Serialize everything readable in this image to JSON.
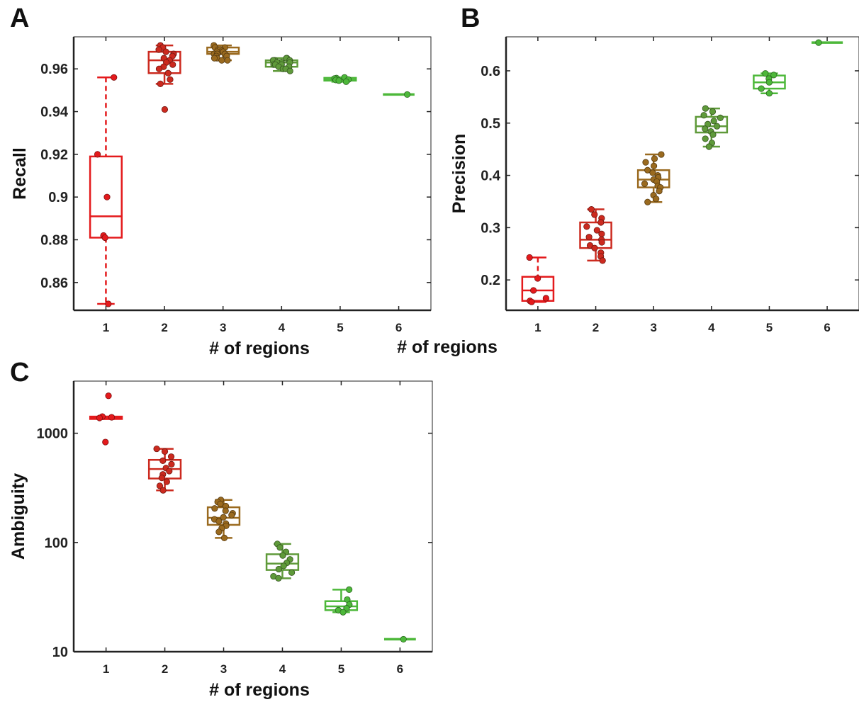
{
  "chart_data": [
    {
      "panel": "A",
      "type": "box",
      "xlabel": "# of regions",
      "ylabel": "Recall",
      "categories": [
        "1",
        "2",
        "3",
        "4",
        "5",
        "6"
      ],
      "ylim": [
        0.847,
        0.975
      ],
      "yticks": [
        {
          "value": 0.86,
          "label": "0.86"
        },
        {
          "value": 0.88,
          "label": "0.88"
        },
        {
          "value": 0.9,
          "label": "0.9"
        },
        {
          "value": 0.92,
          "label": "0.92"
        },
        {
          "value": 0.94,
          "label": "0.94"
        },
        {
          "value": 0.96,
          "label": "0.96"
        }
      ],
      "boxes": [
        {
          "category": "1",
          "color": "#e41a1c",
          "dashed": true,
          "min": 0.85,
          "q1": 0.881,
          "median": 0.891,
          "q3": 0.919,
          "max": 0.956,
          "points": [
            0.956,
            0.92,
            0.9,
            0.882,
            0.881,
            0.85
          ]
        },
        {
          "category": "2",
          "color": "#cc2a1f",
          "dashed": false,
          "min": 0.953,
          "q1": 0.958,
          "median": 0.964,
          "q3": 0.968,
          "max": 0.971,
          "points": [
            0.971,
            0.97,
            0.969,
            0.968,
            0.967,
            0.966,
            0.965,
            0.964,
            0.963,
            0.962,
            0.961,
            0.96,
            0.958,
            0.955,
            0.953,
            0.941
          ]
        },
        {
          "category": "3",
          "color": "#9a6a1f",
          "dashed": false,
          "min": 0.964,
          "q1": 0.967,
          "median": 0.968,
          "q3": 0.97,
          "max": 0.971,
          "points": [
            0.971,
            0.97,
            0.97,
            0.97,
            0.969,
            0.969,
            0.969,
            0.968,
            0.968,
            0.968,
            0.967,
            0.967,
            0.967,
            0.966,
            0.966,
            0.965,
            0.965,
            0.964,
            0.964
          ]
        },
        {
          "category": "4",
          "color": "#5f9a3a",
          "dashed": false,
          "min": 0.959,
          "q1": 0.961,
          "median": 0.963,
          "q3": 0.964,
          "max": 0.965,
          "points": [
            0.965,
            0.965,
            0.964,
            0.964,
            0.964,
            0.963,
            0.963,
            0.963,
            0.962,
            0.962,
            0.962,
            0.961,
            0.961,
            0.96,
            0.96,
            0.959
          ]
        },
        {
          "category": "5",
          "color": "#4db83a",
          "dashed": false,
          "min": 0.954,
          "q1": 0.9545,
          "median": 0.955,
          "q3": 0.9558,
          "max": 0.956,
          "points": [
            0.956,
            0.9557,
            0.9555,
            0.955,
            0.9548,
            0.9545,
            0.954
          ]
        },
        {
          "category": "6",
          "color": "#4db83a",
          "dashed": false,
          "min": 0.948,
          "q1": 0.948,
          "median": 0.948,
          "q3": 0.948,
          "max": 0.948,
          "points": [
            0.948
          ]
        }
      ]
    },
    {
      "panel": "B",
      "type": "box",
      "xlabel": "# of regions",
      "ylabel": "Precision",
      "categories": [
        "1",
        "2",
        "3",
        "4",
        "5",
        "6"
      ],
      "ylim": [
        0.142,
        0.665
      ],
      "yticks": [
        {
          "value": 0.2,
          "label": "0.2"
        },
        {
          "value": 0.3,
          "label": "0.3"
        },
        {
          "value": 0.4,
          "label": "0.4"
        },
        {
          "value": 0.5,
          "label": "0.5"
        },
        {
          "value": 0.6,
          "label": "0.6"
        }
      ],
      "boxes": [
        {
          "category": "1",
          "color": "#e41a1c",
          "dashed": true,
          "min": 0.158,
          "q1": 0.16,
          "median": 0.18,
          "q3": 0.206,
          "max": 0.243,
          "points": [
            0.243,
            0.203,
            0.18,
            0.165,
            0.16,
            0.158
          ]
        },
        {
          "category": "2",
          "color": "#cc2a1f",
          "dashed": false,
          "min": 0.237,
          "q1": 0.261,
          "median": 0.277,
          "q3": 0.31,
          "max": 0.335,
          "points": [
            0.335,
            0.325,
            0.318,
            0.31,
            0.302,
            0.295,
            0.288,
            0.282,
            0.277,
            0.272,
            0.266,
            0.261,
            0.252,
            0.245,
            0.237
          ]
        },
        {
          "category": "3",
          "color": "#9a6a1f",
          "dashed": false,
          "min": 0.349,
          "q1": 0.377,
          "median": 0.392,
          "q3": 0.41,
          "max": 0.44,
          "points": [
            0.44,
            0.432,
            0.425,
            0.418,
            0.41,
            0.405,
            0.4,
            0.396,
            0.392,
            0.388,
            0.384,
            0.38,
            0.377,
            0.37,
            0.362,
            0.355,
            0.349
          ]
        },
        {
          "category": "4",
          "color": "#5f9a3a",
          "dashed": false,
          "min": 0.455,
          "q1": 0.482,
          "median": 0.494,
          "q3": 0.512,
          "max": 0.528,
          "points": [
            0.528,
            0.522,
            0.515,
            0.51,
            0.504,
            0.498,
            0.494,
            0.489,
            0.484,
            0.478,
            0.47,
            0.462,
            0.455
          ]
        },
        {
          "category": "5",
          "color": "#4db83a",
          "dashed": false,
          "min": 0.557,
          "q1": 0.566,
          "median": 0.578,
          "q3": 0.591,
          "max": 0.595,
          "points": [
            0.595,
            0.592,
            0.585,
            0.578,
            0.566,
            0.557
          ]
        },
        {
          "category": "6",
          "color": "#4db83a",
          "dashed": false,
          "min": 0.654,
          "q1": 0.654,
          "median": 0.654,
          "q3": 0.654,
          "max": 0.654,
          "points": [
            0.654
          ]
        }
      ]
    },
    {
      "panel": "C",
      "type": "box",
      "xlabel": "# of regions",
      "ylabel": "Ambiguity",
      "yscale": "log",
      "categories": [
        "1",
        "2",
        "3",
        "4",
        "5",
        "6"
      ],
      "ylim": [
        10,
        3000
      ],
      "yticks": [
        {
          "value": 10,
          "label": "10"
        },
        {
          "value": 100,
          "label": "100"
        },
        {
          "value": 1000,
          "label": "1000"
        }
      ],
      "boxes": [
        {
          "category": "1",
          "color": "#e41a1c",
          "dashed": false,
          "min": 1350,
          "q1": 1350,
          "median": 1380,
          "q3": 1420,
          "max": 1420,
          "points": [
            2200,
            1420,
            1400,
            1380,
            830
          ]
        },
        {
          "category": "2",
          "color": "#cc2a1f",
          "dashed": false,
          "min": 300,
          "q1": 385,
          "median": 470,
          "q3": 570,
          "max": 720,
          "points": [
            720,
            680,
            610,
            560,
            520,
            480,
            450,
            420,
            390,
            360,
            330,
            300
          ]
        },
        {
          "category": "3",
          "color": "#9a6a1f",
          "dashed": false,
          "min": 110,
          "q1": 145,
          "median": 168,
          "q3": 210,
          "max": 245,
          "points": [
            245,
            235,
            225,
            215,
            205,
            195,
            185,
            178,
            170,
            163,
            156,
            149,
            142,
            135,
            125,
            110
          ]
        },
        {
          "category": "4",
          "color": "#5f9a3a",
          "dashed": false,
          "min": 47,
          "q1": 56,
          "median": 64,
          "q3": 78,
          "max": 97,
          "points": [
            97,
            90,
            82,
            76,
            70,
            65,
            61,
            57,
            53,
            49,
            47
          ]
        },
        {
          "category": "5",
          "color": "#4db83a",
          "dashed": false,
          "min": 23,
          "q1": 24,
          "median": 26,
          "q3": 29,
          "max": 37,
          "points": [
            37,
            30,
            27,
            25,
            24,
            23
          ]
        },
        {
          "category": "6",
          "color": "#4db83a",
          "dashed": false,
          "min": 13,
          "q1": 13,
          "median": 13,
          "q3": 13,
          "max": 13,
          "points": [
            13
          ]
        }
      ]
    }
  ]
}
